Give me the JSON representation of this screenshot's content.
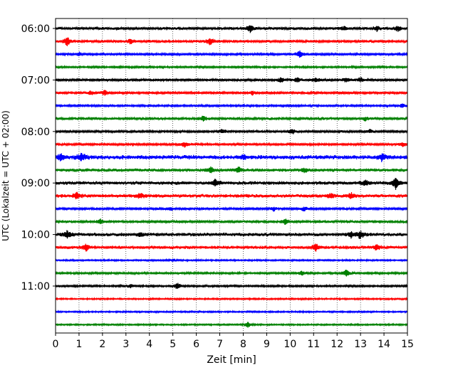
{
  "chart_data": {
    "type": "line",
    "title": "",
    "xlabel": "Zeit  [min]",
    "ylabel": "UTC (Lokalzeit = UTC + 02:00)",
    "xlim": [
      0,
      15
    ],
    "x_ticks": [
      "0",
      "1",
      "2",
      "3",
      "4",
      "5",
      "6",
      "7",
      "8",
      "9",
      "10",
      "11",
      "12",
      "13",
      "14",
      "15"
    ],
    "y_ticks": [
      "06:00",
      "07:00",
      "08:00",
      "09:00",
      "10:00",
      "11:00"
    ],
    "grid": "vertical-dotted",
    "trace_interval_minutes": 15,
    "trace_count": 24,
    "first_trace_time": "06:00",
    "trace_colors": [
      "#000000",
      "#ff0000",
      "#0000ff",
      "#008000"
    ],
    "series": [
      {
        "start": "06:00",
        "color": "#000000",
        "amplitude": 0.35,
        "events": [
          [
            8.3,
            0.9
          ],
          [
            12.3,
            0.5
          ],
          [
            13.7,
            0.6
          ],
          [
            14.6,
            0.7
          ]
        ]
      },
      {
        "start": "06:15",
        "color": "#ff0000",
        "amplitude": 0.35,
        "events": [
          [
            0.5,
            1.0
          ],
          [
            6.6,
            0.8
          ],
          [
            3.2,
            0.5
          ]
        ]
      },
      {
        "start": "06:30",
        "color": "#0000ff",
        "amplitude": 0.3,
        "events": [
          [
            10.4,
            0.8
          ],
          [
            1.0,
            0.4
          ]
        ]
      },
      {
        "start": "06:45",
        "color": "#008000",
        "amplitude": 0.25,
        "events": []
      },
      {
        "start": "07:00",
        "color": "#000000",
        "amplitude": 0.3,
        "events": [
          [
            9.6,
            0.6
          ],
          [
            10.3,
            0.6
          ],
          [
            11.1,
            0.6
          ],
          [
            12.4,
            0.6
          ],
          [
            13.0,
            0.5
          ]
        ]
      },
      {
        "start": "07:15",
        "color": "#ff0000",
        "amplitude": 0.3,
        "events": [
          [
            2.1,
            0.6
          ],
          [
            8.4,
            0.5
          ],
          [
            1.5,
            0.5
          ]
        ]
      },
      {
        "start": "07:30",
        "color": "#0000ff",
        "amplitude": 0.25,
        "events": [
          [
            14.8,
            0.5
          ]
        ]
      },
      {
        "start": "07:45",
        "color": "#008000",
        "amplitude": 0.35,
        "events": [
          [
            6.3,
            0.6
          ],
          [
            13.2,
            0.4
          ]
        ]
      },
      {
        "start": "08:00",
        "color": "#000000",
        "amplitude": 0.3,
        "events": [
          [
            10.1,
            0.6
          ],
          [
            7.1,
            0.5
          ],
          [
            13.4,
            0.4
          ]
        ]
      },
      {
        "start": "08:15",
        "color": "#ff0000",
        "amplitude": 0.3,
        "events": [
          [
            5.5,
            0.6
          ],
          [
            14.8,
            0.5
          ]
        ]
      },
      {
        "start": "08:30",
        "color": "#0000ff",
        "amplitude": 0.55,
        "events": [
          [
            1.1,
            0.9
          ],
          [
            0.2,
            0.7
          ],
          [
            13.9,
            0.8
          ],
          [
            8.0,
            0.5
          ]
        ]
      },
      {
        "start": "08:45",
        "color": "#008000",
        "amplitude": 0.4,
        "events": [
          [
            6.6,
            0.7
          ],
          [
            7.8,
            0.6
          ],
          [
            10.6,
            0.6
          ]
        ]
      },
      {
        "start": "09:00",
        "color": "#000000",
        "amplitude": 0.45,
        "events": [
          [
            14.5,
            1.3
          ],
          [
            6.8,
            0.8
          ],
          [
            13.2,
            0.6
          ]
        ]
      },
      {
        "start": "09:15",
        "color": "#ff0000",
        "amplitude": 0.45,
        "events": [
          [
            0.9,
            0.7
          ],
          [
            3.6,
            0.6
          ],
          [
            12.6,
            0.6
          ],
          [
            11.7,
            0.5
          ]
        ]
      },
      {
        "start": "09:30",
        "color": "#0000ff",
        "amplitude": 0.3,
        "events": [
          [
            10.6,
            0.5
          ],
          [
            4.9,
            0.4
          ],
          [
            9.3,
            0.4
          ]
        ]
      },
      {
        "start": "09:45",
        "color": "#008000",
        "amplitude": 0.35,
        "events": [
          [
            9.8,
            0.6
          ],
          [
            1.9,
            0.5
          ]
        ]
      },
      {
        "start": "10:00",
        "color": "#000000",
        "amplitude": 0.45,
        "events": [
          [
            0.5,
            0.9
          ],
          [
            13.0,
            0.9
          ],
          [
            12.6,
            0.6
          ],
          [
            3.6,
            0.5
          ]
        ]
      },
      {
        "start": "10:15",
        "color": "#ff0000",
        "amplitude": 0.4,
        "events": [
          [
            1.3,
            0.8
          ],
          [
            11.1,
            0.9
          ],
          [
            13.7,
            0.7
          ]
        ]
      },
      {
        "start": "10:30",
        "color": "#0000ff",
        "amplitude": 0.2,
        "events": [
          [
            5.0,
            0.4
          ]
        ]
      },
      {
        "start": "10:45",
        "color": "#008000",
        "amplitude": 0.25,
        "events": [
          [
            10.5,
            0.6
          ],
          [
            12.4,
            0.8
          ]
        ]
      },
      {
        "start": "11:00",
        "color": "#000000",
        "amplitude": 0.25,
        "events": [
          [
            5.2,
            0.8
          ],
          [
            3.2,
            0.4
          ]
        ]
      },
      {
        "start": "11:15",
        "color": "#ff0000",
        "amplitude": 0.2,
        "events": []
      },
      {
        "start": "11:30",
        "color": "#0000ff",
        "amplitude": 0.2,
        "events": []
      },
      {
        "start": "11:45",
        "color": "#008000",
        "amplitude": 0.2,
        "events": [
          [
            8.2,
            0.7
          ]
        ]
      }
    ]
  }
}
